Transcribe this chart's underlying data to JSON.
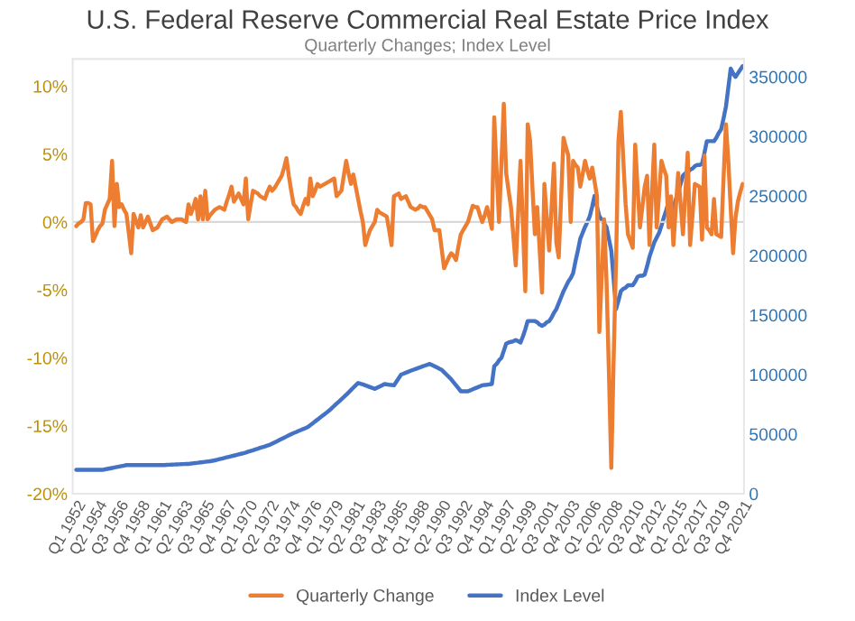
{
  "chart_data": {
    "type": "line",
    "title": "U.S. Federal Reserve Commercial Real Estate Price Index",
    "subtitle": "Quarterly Changes; Index Level",
    "categories": [
      "Q1 1952",
      null,
      null,
      null,
      null,
      null,
      null,
      null,
      null,
      "Q2 1954",
      null,
      null,
      null,
      null,
      null,
      null,
      null,
      null,
      "Q3 1956",
      null,
      null,
      null,
      null,
      null,
      null,
      null,
      null,
      "Q4 1958",
      null,
      null,
      null,
      null,
      null,
      null,
      null,
      null,
      "Q1 1961",
      null,
      null,
      null,
      null,
      null,
      null,
      null,
      null,
      "Q2 1963",
      null,
      null,
      null,
      null,
      null,
      null,
      null,
      null,
      "Q3 1965",
      null,
      null,
      null,
      null,
      null,
      null,
      null,
      null,
      "Q4 1967",
      null,
      null,
      null,
      null,
      null,
      null,
      null,
      null,
      "Q1 1970",
      null,
      null,
      null,
      null,
      null,
      null,
      null,
      null,
      "Q2 1972",
      null,
      null,
      null,
      null,
      null,
      null,
      null,
      null,
      "Q3 1974",
      null,
      null,
      null,
      null,
      null,
      null,
      null,
      null,
      "Q4 1976",
      null,
      null,
      null,
      null,
      null,
      null,
      null,
      null,
      "Q1 1979",
      null,
      null,
      null,
      null,
      null,
      null,
      null,
      null,
      "Q2 1981",
      null,
      null,
      null,
      null,
      null,
      null,
      null,
      null,
      "Q3 1983",
      null,
      null,
      null,
      null,
      null,
      null,
      null,
      null,
      "Q4 1985",
      null,
      null,
      null,
      null,
      null,
      null,
      null,
      null,
      "Q1 1988",
      null,
      null,
      null,
      null,
      null,
      null,
      null,
      null,
      "Q2 1990",
      null,
      null,
      null,
      null,
      null,
      null,
      null,
      null,
      "Q3 1992",
      null,
      null,
      null,
      null,
      null,
      null,
      null,
      null,
      "Q4 1994",
      null,
      null,
      null,
      null,
      null,
      null,
      null,
      null,
      "Q1 1997",
      null,
      null,
      null,
      null,
      null,
      null,
      null,
      null,
      "Q2 1999",
      null,
      null,
      null,
      null,
      null,
      null,
      null,
      null,
      "Q3 2001",
      null,
      null,
      null,
      null,
      null,
      null,
      null,
      null,
      "Q4 2003",
      null,
      null,
      null,
      null,
      null,
      null,
      null,
      null,
      "Q1 2006",
      null,
      null,
      null,
      null,
      null,
      null,
      null,
      null,
      "Q2 2008",
      null,
      null,
      null,
      null,
      null,
      null,
      null,
      null,
      "Q3 2010",
      null,
      null,
      null,
      null,
      null,
      null,
      null,
      null,
      "Q4 2012",
      null,
      null,
      null,
      null,
      null,
      null,
      null,
      null,
      "Q1 2015",
      null,
      null,
      null,
      null,
      null,
      null,
      null,
      null,
      "Q2 2017",
      null,
      null,
      null,
      null,
      null,
      null,
      null,
      null,
      "Q3 2019",
      null,
      null,
      null,
      null,
      null,
      null,
      null,
      null,
      "Q4 2021"
    ],
    "series": [
      {
        "name": "Quarterly Change",
        "color": "#ed7d31",
        "values": [
          -0.3,
          -0.1,
          0.0,
          0.2,
          1.4,
          1.4,
          1.3,
          -1.4,
          -1.0,
          -0.6,
          -0.3,
          -0.1,
          0.9,
          1.3,
          1.7,
          4.5,
          -0.3,
          2.8,
          1.1,
          1.3,
          0.9,
          0.6,
          -0.8,
          -2.3,
          0.6,
          0.1,
          -0.4,
          0.5,
          -0.4,
          0.0,
          0.4,
          -0.1,
          -0.6,
          -0.5,
          -0.4,
          -0.1,
          0.2,
          0.3,
          0.4,
          0.2,
          0,
          0.1,
          0.2,
          0.2,
          0.2,
          0.1,
          0,
          1.3,
          0.6,
          1.1,
          1.7,
          0.2,
          1.9,
          0.2,
          2.3,
          0.2,
          0.5,
          0.7,
          0.9,
          1.0,
          1.1,
          1.0,
          0.9,
          1.5,
          2.0,
          2.6,
          1.5,
          1.8,
          2.1,
          1.7,
          1.3,
          3.2,
          0.2,
          1.3,
          2.3,
          2.2,
          2.1,
          1.9,
          1.8,
          1.7,
          2.2,
          2.6,
          2.3,
          2.5,
          2.8,
          3.1,
          3.4,
          4.0,
          4.7,
          3.4,
          2.3,
          1.3,
          1.1,
          0.8,
          0.6,
          1.2,
          1.7,
          1.3,
          3.2,
          1.9,
          2.3,
          2.8,
          2.6,
          2.7,
          2.8,
          2.9,
          3.0,
          3.1,
          3.2,
          1.9,
          2.1,
          2.3,
          3.4,
          4.5,
          3.6,
          2.8,
          3.5,
          2.6,
          1.7,
          0.8,
          0,
          -1.7,
          -1.1,
          -0.6,
          -0.3,
          0,
          0.9,
          0.7,
          0.6,
          0.5,
          0.4,
          -0.6,
          -1.7,
          1.9,
          2.0,
          2.1,
          1.7,
          1.8,
          1.9,
          1.5,
          1.1,
          1.0,
          0.9,
          1.0,
          1.2,
          1.1,
          1.1,
          0.8,
          0.5,
          0.2,
          -0.6,
          -0.6,
          -0.6,
          -2.0,
          -3.4,
          -3.0,
          -2.6,
          -2.3,
          -2.5,
          -2.8,
          -1.8,
          -0.9,
          -0.6,
          -0.3,
          0,
          0.6,
          1.2,
          1.1,
          1.1,
          0.5,
          0,
          0.5,
          1.1,
          0.3,
          -0.5,
          7.7,
          3.8,
          0,
          4.3,
          8.7,
          3.6,
          2.3,
          1.1,
          -1.0,
          -3.2,
          0.6,
          4.5,
          -0.3,
          -5.1,
          7.2,
          6.0,
          2.5,
          -0.9,
          1.1,
          -2.0,
          -5.2,
          2.8,
          0.3,
          -2.1,
          1.1,
          4.3,
          -1.5,
          -2.6,
          1.8,
          6.2,
          5.5,
          4.9,
          0,
          4.5,
          4.2,
          4.0,
          2.6,
          3.5,
          4.5,
          3.8,
          3.2,
          4.0,
          3.0,
          1.9,
          -8.1,
          -4.0,
          0.2,
          -4.3,
          -11.0,
          -18.1,
          -10.0,
          -2.8,
          6.0,
          8.1,
          4.7,
          1.3,
          -0.9,
          -1.4,
          -1.9,
          5.7,
          2.6,
          -0.4,
          1.1,
          2.6,
          3.4,
          -1.7,
          2.0,
          5.7,
          -0.4,
          2.0,
          4.5,
          3.9,
          3.4,
          -0.4,
          1.9,
          -1.7,
          1.0,
          3.6,
          1.4,
          -0.9,
          2.1,
          5.1,
          -1.7,
          0.5,
          2.8,
          2.7,
          2.6,
          -1.3,
          4.9,
          -0.4,
          -0.6,
          -0.9,
          1.7,
          -0.9,
          -1.0,
          -1.1,
          3.2,
          7.2,
          4.5,
          1.0,
          -2.3,
          0.3,
          1.5,
          2.2,
          2.8
        ]
      },
      {
        "name": "Index Level",
        "color": "#4472c4",
        "axis": "y2",
        "values": [
          20000,
          20000,
          20000,
          20000,
          20000,
          20000,
          20000,
          20000,
          20000,
          20000,
          20000,
          20000,
          20400,
          20800,
          21200,
          21600,
          22000,
          22400,
          22800,
          23200,
          23600,
          24000,
          24000,
          24000,
          24000,
          24000,
          24000,
          24000,
          24000,
          24000,
          24000,
          24000,
          24000,
          24000,
          24000,
          24000,
          24000,
          24100,
          24200,
          24300,
          24400,
          24500,
          24600,
          24700,
          24800,
          24900,
          25000,
          25000,
          25300,
          25500,
          25800,
          26000,
          26300,
          26500,
          26800,
          27000,
          27300,
          27600,
          28000,
          28500,
          29000,
          29500,
          30000,
          30500,
          31000,
          31500,
          32000,
          32500,
          33000,
          33500,
          34000,
          34600,
          35300,
          35900,
          36500,
          37200,
          37800,
          38500,
          39100,
          39700,
          40400,
          41000,
          42000,
          43000,
          44000,
          45000,
          46000,
          47000,
          48000,
          49000,
          50000,
          50900,
          51700,
          52600,
          53400,
          54300,
          55100,
          56000,
          57600,
          59100,
          60700,
          62200,
          63800,
          65300,
          66900,
          68400,
          70000,
          71900,
          73700,
          75600,
          77400,
          79300,
          81100,
          83000,
          85000,
          87000,
          89000,
          91000,
          93000,
          92300,
          91700,
          91000,
          90300,
          89500,
          88800,
          88000,
          89000,
          90000,
          91000,
          92000,
          91800,
          91500,
          91300,
          91000,
          94000,
          97000,
          100000,
          100800,
          101600,
          102400,
          103200,
          104000,
          104700,
          105400,
          106100,
          106900,
          107600,
          108300,
          109000,
          108000,
          107000,
          106000,
          105000,
          104000,
          102000,
          100000,
          98000,
          96000,
          93500,
          91000,
          88500,
          86000,
          86000,
          86000,
          86000,
          86800,
          87700,
          88500,
          89300,
          90200,
          91000,
          91300,
          91500,
          91800,
          92000,
          107000,
          109000,
          112000,
          114000,
          120000,
          126000,
          127000,
          127500,
          128000,
          129000,
          128000,
          127000,
          132000,
          138000,
          145000,
          145000,
          145000,
          145000,
          144000,
          142000,
          141000,
          142000,
          144000,
          145000,
          148000,
          152000,
          155000,
          160000,
          165000,
          170000,
          174000,
          178000,
          181000,
          185000,
          195000,
          204000,
          214000,
          219000,
          224000,
          228000,
          233000,
          241000,
          250000,
          241000,
          233000,
          230000,
          227000,
          224000,
          214000,
          204000,
          180000,
          155000,
          162000,
          170000,
          172000,
          173000,
          175000,
          175000,
          175000,
          178000,
          182000,
          183000,
          183000,
          184000,
          191000,
          199000,
          205000,
          211000,
          215000,
          219000,
          225000,
          232000,
          238000,
          245000,
          242000,
          240000,
          247000,
          253000,
          260000,
          267000,
          269000,
          270000,
          272000,
          273000,
          275000,
          276000,
          276000,
          277000,
          286000,
          296000,
          296000,
          296000,
          296000,
          299000,
          303000,
          306000,
          315000,
          325000,
          341000,
          357000,
          353000,
          350000,
          353000,
          356000,
          359000
        ]
      }
    ],
    "ylim": [
      -20,
      12
    ],
    "yticks": [
      {
        "value": -20,
        "label": "-20%"
      },
      {
        "value": -15,
        "label": "-15%"
      },
      {
        "value": -10,
        "label": "-10%"
      },
      {
        "value": -5,
        "label": "-5%"
      },
      {
        "value": 0,
        "label": "0%"
      },
      {
        "value": 5,
        "label": "5%"
      },
      {
        "value": 10,
        "label": "10%"
      }
    ],
    "y2lim": [
      0,
      365000
    ],
    "y2ticks": [
      0,
      50000,
      100000,
      150000,
      200000,
      250000,
      300000,
      350000
    ],
    "ref_lines": [
      {
        "axis": "y",
        "value": 0,
        "color": "#d9d9d9"
      }
    ],
    "legend": "bottom"
  }
}
